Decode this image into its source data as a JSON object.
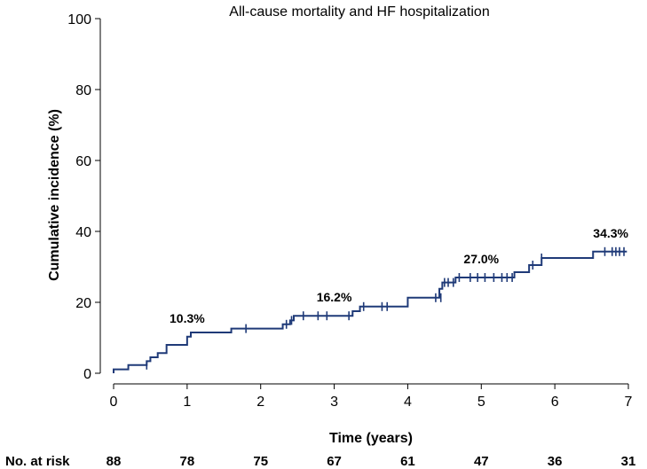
{
  "chart_data": {
    "type": "line",
    "title": "All-cause mortality and HF hospitalization",
    "xlabel": "Time (years)",
    "ylabel": "Cumulative incidence (%)",
    "xlim": [
      0,
      7
    ],
    "ylim": [
      0,
      100
    ],
    "x_ticks": [
      "0",
      "1",
      "2",
      "3",
      "4",
      "5",
      "6",
      "7"
    ],
    "y_ticks": [
      "0",
      "20",
      "40",
      "60",
      "80",
      "100"
    ],
    "line_color": "#1f3a78",
    "series": [
      {
        "name": "All-cause mortality and HF hospitalization",
        "steps": [
          [
            0,
            1.1
          ],
          [
            0.2,
            2.3
          ],
          [
            0.45,
            3.4
          ],
          [
            0.5,
            4.5
          ],
          [
            0.6,
            5.7
          ],
          [
            0.72,
            8.0
          ],
          [
            1.0,
            10.3
          ],
          [
            1.05,
            11.5
          ],
          [
            1.6,
            12.6
          ],
          [
            2.3,
            13.8
          ],
          [
            2.4,
            14.9
          ],
          [
            2.45,
            16.2
          ],
          [
            3.25,
            17.5
          ],
          [
            3.35,
            18.8
          ],
          [
            4.0,
            21.3
          ],
          [
            4.43,
            23.8
          ],
          [
            4.47,
            25.6
          ],
          [
            4.65,
            27.0
          ],
          [
            5.45,
            28.5
          ],
          [
            5.65,
            30.5
          ],
          [
            5.82,
            32.5
          ],
          [
            6.52,
            34.3
          ]
        ],
        "end_x": 6.98,
        "censored": [
          [
            0.45,
            2.3
          ],
          [
            1.8,
            12.6
          ],
          [
            2.35,
            13.8
          ],
          [
            2.42,
            14.9
          ],
          [
            2.58,
            16.2
          ],
          [
            2.78,
            16.2
          ],
          [
            2.9,
            16.2
          ],
          [
            3.2,
            16.2
          ],
          [
            3.4,
            18.8
          ],
          [
            3.65,
            18.8
          ],
          [
            3.72,
            18.8
          ],
          [
            4.38,
            21.3
          ],
          [
            4.45,
            21.3
          ],
          [
            4.5,
            25.6
          ],
          [
            4.55,
            25.6
          ],
          [
            4.62,
            25.6
          ],
          [
            4.7,
            27.0
          ],
          [
            4.85,
            27.0
          ],
          [
            4.95,
            27.0
          ],
          [
            5.05,
            27.0
          ],
          [
            5.17,
            27.0
          ],
          [
            5.28,
            27.0
          ],
          [
            5.35,
            27.0
          ],
          [
            5.42,
            27.0
          ],
          [
            5.7,
            30.5
          ],
          [
            5.82,
            32.5
          ],
          [
            6.68,
            34.3
          ],
          [
            6.78,
            34.3
          ],
          [
            6.83,
            34.3
          ],
          [
            6.88,
            34.3
          ],
          [
            6.94,
            34.3
          ]
        ]
      }
    ],
    "annotations": [
      {
        "text": "10.3%",
        "x": 1.0,
        "y": 10.3
      },
      {
        "text": "16.2%",
        "x": 3.0,
        "y": 16.2
      },
      {
        "text": "27.0%",
        "x": 5.0,
        "y": 27.0
      },
      {
        "text": "34.3%",
        "x": 7.0,
        "y": 34.3
      }
    ],
    "risk_table": {
      "label": "No. at risk",
      "times": [
        0,
        1,
        2,
        3,
        4,
        5,
        6,
        7
      ],
      "values": [
        "88",
        "78",
        "75",
        "67",
        "61",
        "47",
        "36",
        "31"
      ]
    }
  }
}
